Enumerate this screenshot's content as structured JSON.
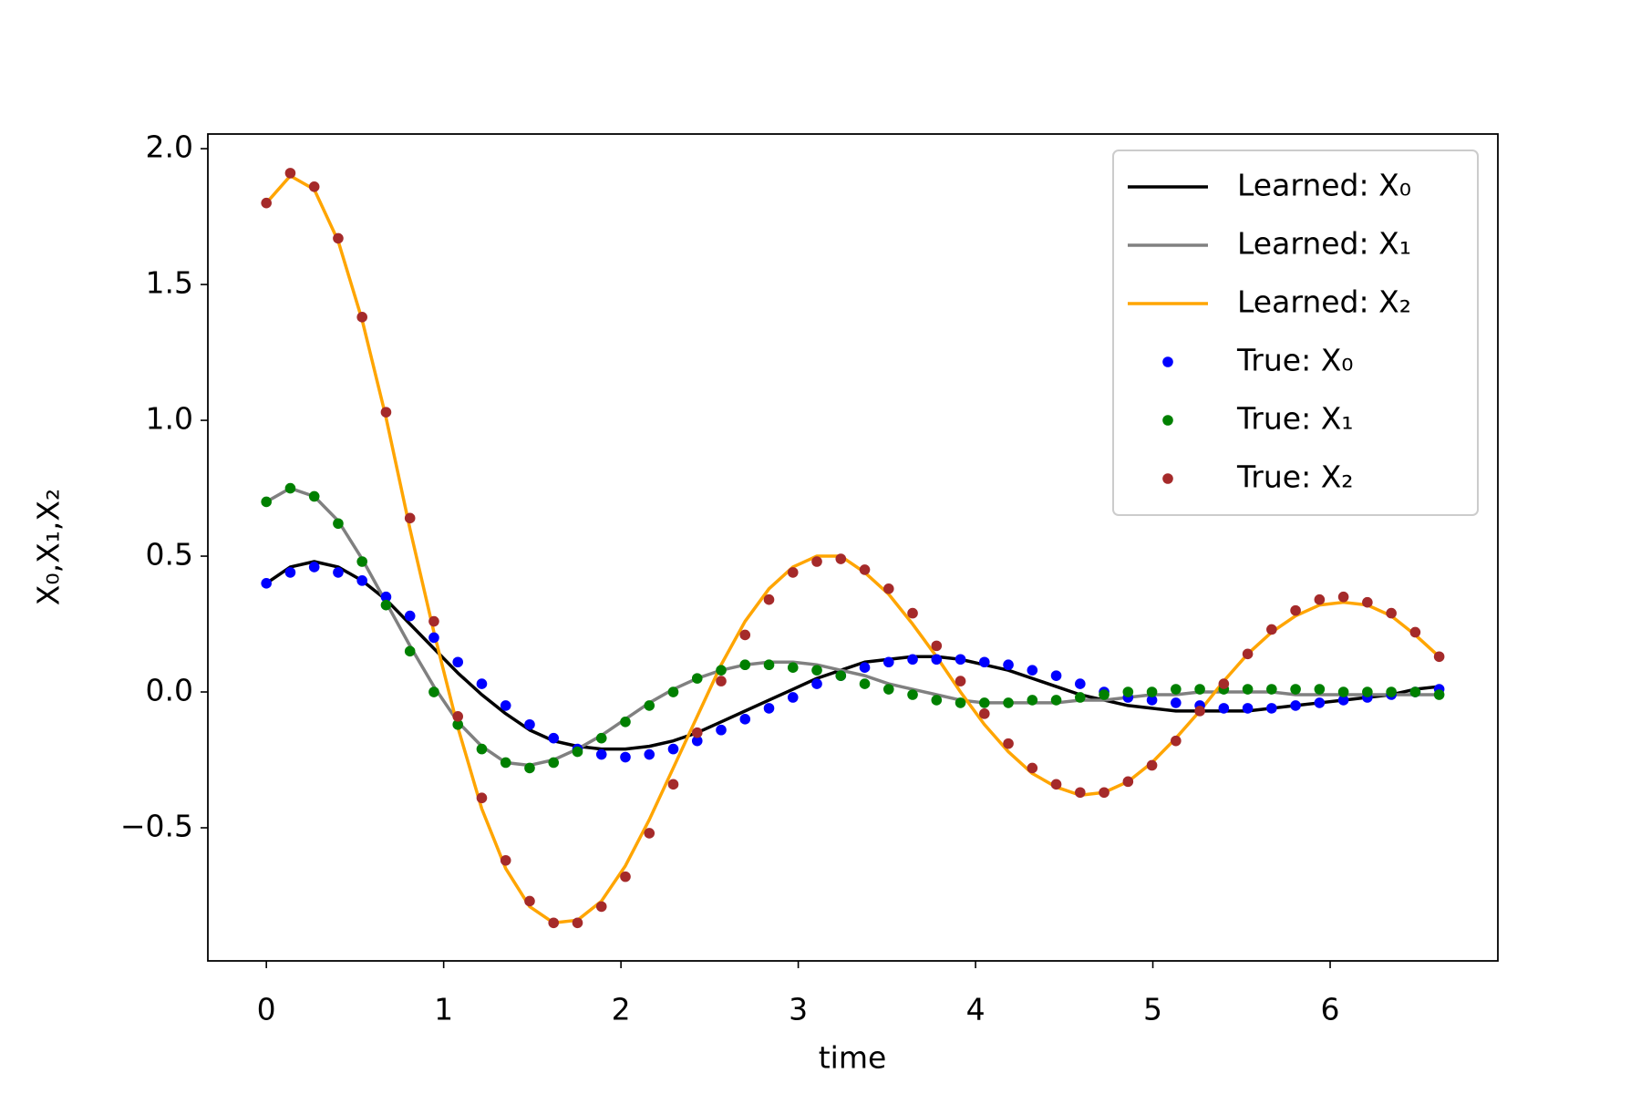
{
  "chart_data": {
    "type": "line",
    "xlabel": "time",
    "ylabel": "X₀,X₁,X₂",
    "x": [
      0,
      0.135,
      0.27,
      0.405,
      0.54,
      0.675,
      0.81,
      0.945,
      1.08,
      1.215,
      1.35,
      1.485,
      1.62,
      1.755,
      1.89,
      2.025,
      2.16,
      2.295,
      2.43,
      2.565,
      2.7,
      2.835,
      2.97,
      3.105,
      3.24,
      3.375,
      3.51,
      3.645,
      3.78,
      3.915,
      4.05,
      4.185,
      4.32,
      4.455,
      4.59,
      4.725,
      4.86,
      4.995,
      5.13,
      5.265,
      5.4,
      5.535,
      5.67,
      5.805,
      5.94,
      6.075,
      6.21,
      6.345,
      6.48,
      6.615
    ],
    "series": [
      {
        "name": "Learned: X₀",
        "color": "#000000",
        "style": "line",
        "values": [
          0.4,
          0.46,
          0.48,
          0.46,
          0.41,
          0.34,
          0.25,
          0.16,
          0.07,
          -0.01,
          -0.08,
          -0.14,
          -0.18,
          -0.2,
          -0.21,
          -0.21,
          -0.2,
          -0.18,
          -0.15,
          -0.11,
          -0.07,
          -0.03,
          0.01,
          0.05,
          0.08,
          0.11,
          0.12,
          0.13,
          0.13,
          0.12,
          0.1,
          0.08,
          0.05,
          0.02,
          -0.01,
          -0.03,
          -0.05,
          -0.06,
          -0.07,
          -0.07,
          -0.07,
          -0.07,
          -0.06,
          -0.05,
          -0.04,
          -0.03,
          -0.02,
          -0.01,
          0.01,
          0.02
        ]
      },
      {
        "name": "Learned: X₁",
        "color": "#808080",
        "style": "line",
        "values": [
          0.7,
          0.75,
          0.72,
          0.63,
          0.49,
          0.33,
          0.17,
          0.02,
          -0.11,
          -0.2,
          -0.26,
          -0.27,
          -0.25,
          -0.21,
          -0.16,
          -0.1,
          -0.04,
          0.01,
          0.05,
          0.08,
          0.1,
          0.11,
          0.11,
          0.1,
          0.08,
          0.06,
          0.03,
          0.01,
          -0.01,
          -0.03,
          -0.04,
          -0.04,
          -0.04,
          -0.04,
          -0.03,
          -0.03,
          -0.02,
          -0.01,
          -0.01,
          0.0,
          0.0,
          0.0,
          0.0,
          -0.01,
          -0.01,
          -0.01,
          -0.01,
          -0.01,
          -0.01,
          -0.01
        ]
      },
      {
        "name": "Learned: X₂",
        "color": "#ffa500",
        "style": "line",
        "values": [
          1.8,
          1.9,
          1.85,
          1.66,
          1.37,
          1.01,
          0.6,
          0.22,
          -0.13,
          -0.43,
          -0.65,
          -0.79,
          -0.85,
          -0.84,
          -0.77,
          -0.64,
          -0.47,
          -0.28,
          -0.09,
          0.1,
          0.26,
          0.38,
          0.46,
          0.5,
          0.5,
          0.44,
          0.36,
          0.25,
          0.13,
          0.0,
          -0.12,
          -0.22,
          -0.3,
          -0.35,
          -0.38,
          -0.37,
          -0.33,
          -0.26,
          -0.17,
          -0.07,
          0.04,
          0.14,
          0.22,
          0.28,
          0.32,
          0.33,
          0.32,
          0.28,
          0.21,
          0.13
        ]
      },
      {
        "name": "True: X₀",
        "color": "#0000ff",
        "style": "points",
        "values": [
          0.4,
          0.44,
          0.46,
          0.44,
          0.41,
          0.35,
          0.28,
          0.2,
          0.11,
          0.03,
          -0.05,
          -0.12,
          -0.17,
          -0.21,
          -0.23,
          -0.24,
          -0.23,
          -0.21,
          -0.18,
          -0.14,
          -0.1,
          -0.06,
          -0.02,
          0.03,
          0.06,
          0.09,
          0.11,
          0.12,
          0.12,
          0.12,
          0.11,
          0.1,
          0.08,
          0.06,
          0.03,
          0.0,
          -0.02,
          -0.03,
          -0.04,
          -0.05,
          -0.06,
          -0.06,
          -0.06,
          -0.05,
          -0.04,
          -0.03,
          -0.02,
          -0.01,
          0.0,
          0.01
        ]
      },
      {
        "name": "True: X₁",
        "color": "#008000",
        "style": "points",
        "values": [
          0.7,
          0.75,
          0.72,
          0.62,
          0.48,
          0.32,
          0.15,
          0.0,
          -0.12,
          -0.21,
          -0.26,
          -0.28,
          -0.26,
          -0.22,
          -0.17,
          -0.11,
          -0.05,
          0.0,
          0.05,
          0.08,
          0.1,
          0.1,
          0.09,
          0.08,
          0.06,
          0.03,
          0.01,
          -0.01,
          -0.03,
          -0.04,
          -0.04,
          -0.04,
          -0.03,
          -0.03,
          -0.02,
          -0.01,
          0.0,
          0.0,
          0.01,
          0.01,
          0.01,
          0.01,
          0.01,
          0.01,
          0.01,
          0.0,
          0.0,
          0.0,
          0.0,
          -0.01
        ]
      },
      {
        "name": "True: X₂",
        "color": "#a52a2a",
        "style": "points",
        "values": [
          1.8,
          1.91,
          1.86,
          1.67,
          1.38,
          1.03,
          0.64,
          0.26,
          -0.09,
          -0.39,
          -0.62,
          -0.77,
          -0.85,
          -0.85,
          -0.79,
          -0.68,
          -0.52,
          -0.34,
          -0.15,
          0.04,
          0.21,
          0.34,
          0.44,
          0.48,
          0.49,
          0.45,
          0.38,
          0.29,
          0.17,
          0.04,
          -0.08,
          -0.19,
          -0.28,
          -0.34,
          -0.37,
          -0.37,
          -0.33,
          -0.27,
          -0.18,
          -0.07,
          0.03,
          0.14,
          0.23,
          0.3,
          0.34,
          0.35,
          0.33,
          0.29,
          0.22,
          0.13
        ]
      }
    ],
    "xlim": [
      -0.33,
      6.946
    ],
    "xticks": [
      0,
      1,
      2,
      3,
      4,
      5,
      6
    ],
    "ylim": [
      -0.99,
      2.054
    ],
    "yticks": [
      {
        "value": -0.5,
        "label": "−0.5"
      },
      {
        "value": 0,
        "label": "0.0"
      },
      0.5,
      {
        "value": 1,
        "label": "1.0"
      },
      1.5,
      {
        "value": 2,
        "label": "2.0"
      }
    ],
    "grid": false,
    "legend": "upper right"
  }
}
